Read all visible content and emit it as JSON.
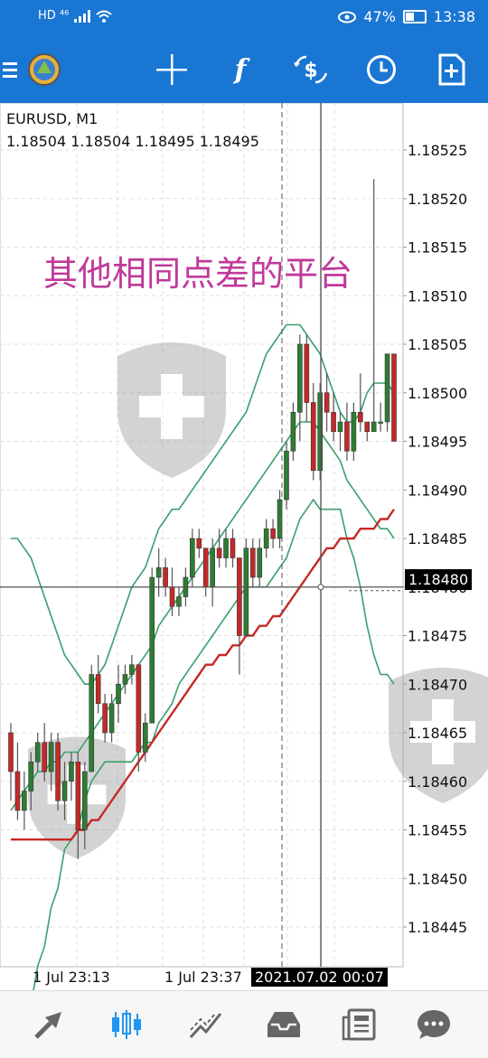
{
  "status_bar": {
    "left_badges": "HD ⁴⁶",
    "battery": "47%",
    "time": "13:38"
  },
  "toolbar": {
    "items": [
      {
        "name": "menu-icon"
      },
      {
        "name": "app-logo-icon"
      },
      {
        "name": "crosshair-icon"
      },
      {
        "name": "indicators-icon",
        "label": "f"
      },
      {
        "name": "trade-icon"
      },
      {
        "name": "timeframe-clock-icon"
      },
      {
        "name": "add-object-icon"
      }
    ]
  },
  "chart": {
    "symbol": "EURUSD, M1",
    "ohlc": "1.18504 1.18504 1.18495 1.18495",
    "watermark_text": "其他相同点差的平台",
    "current_price": "1.18480",
    "crosshair_time": "2021.07.02 00:07",
    "time_labels": [
      "1 Jul 23:13",
      "1 Jul 23:37"
    ],
    "colors": {
      "bull": "#2e7d32",
      "bear": "#c62828",
      "bands": "#3aa06a",
      "ma": "#c62828",
      "watermark": "#c0399a"
    }
  },
  "chart_data": {
    "type": "candlestick",
    "title": "EURUSD, M1",
    "y_ticks": [
      1.18525,
      1.1852,
      1.18515,
      1.1851,
      1.18505,
      1.185,
      1.18495,
      1.1849,
      1.18485,
      1.1848,
      1.18475,
      1.1847,
      1.18465,
      1.1846,
      1.18455,
      1.1845,
      1.18445
    ],
    "ylim": [
      1.18442,
      1.18528
    ],
    "grid": true,
    "candles": [
      [
        1.18465,
        1.18466,
        1.18458,
        1.18461
      ],
      [
        1.18461,
        1.18464,
        1.18456,
        1.18457
      ],
      [
        1.18457,
        1.18461,
        1.18455,
        1.18459
      ],
      [
        1.18459,
        1.18463,
        1.18457,
        1.18462
      ],
      [
        1.18462,
        1.18465,
        1.18461,
        1.18464
      ],
      [
        1.18464,
        1.18466,
        1.1846,
        1.18461
      ],
      [
        1.18461,
        1.18465,
        1.18459,
        1.18464
      ],
      [
        1.18464,
        1.18465,
        1.18457,
        1.18458
      ],
      [
        1.18458,
        1.18462,
        1.18456,
        1.1846
      ],
      [
        1.1846,
        1.18463,
        1.18458,
        1.18462
      ],
      [
        1.18462,
        1.18463,
        1.18452,
        1.18455
      ],
      [
        1.18455,
        1.18462,
        1.18453,
        1.18461
      ],
      [
        1.18461,
        1.18472,
        1.18461,
        1.18471
      ],
      [
        1.18471,
        1.18473,
        1.18467,
        1.18468
      ],
      [
        1.18468,
        1.18469,
        1.18464,
        1.18465
      ],
      [
        1.18465,
        1.18469,
        1.18464,
        1.18468
      ],
      [
        1.18468,
        1.18472,
        1.18466,
        1.1847
      ],
      [
        1.1847,
        1.18472,
        1.18469,
        1.18471
      ],
      [
        1.18471,
        1.18473,
        1.1847,
        1.18472
      ],
      [
        1.18472,
        1.18472,
        1.18461,
        1.18463
      ],
      [
        1.18463,
        1.18467,
        1.18462,
        1.18466
      ],
      [
        1.18466,
        1.18482,
        1.18466,
        1.18481
      ],
      [
        1.18481,
        1.18484,
        1.18479,
        1.18482
      ],
      [
        1.18482,
        1.18483,
        1.18479,
        1.1848
      ],
      [
        1.1848,
        1.18482,
        1.18477,
        1.18478
      ],
      [
        1.18478,
        1.1848,
        1.18477,
        1.18479
      ],
      [
        1.18479,
        1.18482,
        1.18478,
        1.18481
      ],
      [
        1.18481,
        1.18486,
        1.1848,
        1.18485
      ],
      [
        1.18485,
        1.18486,
        1.18483,
        1.18484
      ],
      [
        1.18484,
        1.18484,
        1.18479,
        1.1848
      ],
      [
        1.1848,
        1.18485,
        1.18478,
        1.18484
      ],
      [
        1.18484,
        1.18486,
        1.18482,
        1.18483
      ],
      [
        1.18483,
        1.18486,
        1.18482,
        1.18485
      ],
      [
        1.18485,
        1.18486,
        1.18482,
        1.18483
      ],
      [
        1.18483,
        1.18483,
        1.18471,
        1.18475
      ],
      [
        1.18475,
        1.18485,
        1.18475,
        1.18484
      ],
      [
        1.18484,
        1.18485,
        1.1848,
        1.18481
      ],
      [
        1.18481,
        1.18485,
        1.1848,
        1.18484
      ],
      [
        1.18484,
        1.18487,
        1.18483,
        1.18486
      ],
      [
        1.18486,
        1.18487,
        1.18484,
        1.18485
      ],
      [
        1.18485,
        1.1849,
        1.18484,
        1.18489
      ],
      [
        1.18489,
        1.18495,
        1.18488,
        1.18494
      ],
      [
        1.18494,
        1.18499,
        1.18493,
        1.18498
      ],
      [
        1.18498,
        1.18506,
        1.18495,
        1.18505
      ],
      [
        1.18505,
        1.18506,
        1.18497,
        1.18499
      ],
      [
        1.18499,
        1.18501,
        1.18491,
        1.18492
      ],
      [
        1.18492,
        1.18501,
        1.18491,
        1.185
      ],
      [
        1.185,
        1.18502,
        1.18496,
        1.18498
      ],
      [
        1.18498,
        1.185,
        1.18495,
        1.18496
      ],
      [
        1.18496,
        1.18498,
        1.18494,
        1.18497
      ],
      [
        1.18497,
        1.18499,
        1.18493,
        1.18494
      ],
      [
        1.18494,
        1.18499,
        1.18493,
        1.18498
      ],
      [
        1.18498,
        1.18502,
        1.18496,
        1.18497
      ],
      [
        1.18497,
        1.18497,
        1.18495,
        1.18496
      ],
      [
        1.18496,
        1.18522,
        1.18496,
        1.18497
      ],
      [
        1.18497,
        1.18499,
        1.18496,
        1.18497
      ],
      [
        1.18497,
        1.18504,
        1.18496,
        1.18504
      ],
      [
        1.18504,
        1.18504,
        1.18495,
        1.18495
      ]
    ],
    "bands_upper": [
      1.18485,
      1.18485,
      1.18484,
      1.18483,
      1.18481,
      1.18479,
      1.18477,
      1.18475,
      1.18473,
      1.18472,
      1.18471,
      1.1847,
      1.1847,
      1.18471,
      1.18472,
      1.18474,
      1.18476,
      1.18478,
      1.1848,
      1.18481,
      1.18482,
      1.18484,
      1.18486,
      1.18487,
      1.18488,
      1.18488,
      1.18489,
      1.1849,
      1.18491,
      1.18492,
      1.18493,
      1.18494,
      1.18495,
      1.18496,
      1.18497,
      1.18498,
      1.185,
      1.18502,
      1.18504,
      1.18505,
      1.18506,
      1.18507,
      1.18507,
      1.18507,
      1.18506,
      1.18505,
      1.18504,
      1.18502,
      1.185,
      1.18498,
      1.18497,
      1.18497,
      1.18498,
      1.185,
      1.18501,
      1.18501,
      1.18501,
      1.185
    ],
    "bands_middle": [
      1.18457,
      1.18458,
      1.18459,
      1.1846,
      1.18461,
      1.18461,
      1.18462,
      1.18462,
      1.18463,
      1.18463,
      1.18463,
      1.18464,
      1.18465,
      1.18466,
      1.18467,
      1.18468,
      1.18469,
      1.1847,
      1.18471,
      1.18472,
      1.18473,
      1.18474,
      1.18476,
      1.18477,
      1.18478,
      1.18479,
      1.1848,
      1.18481,
      1.18482,
      1.18483,
      1.18484,
      1.18485,
      1.18486,
      1.18487,
      1.18488,
      1.18489,
      1.1849,
      1.18491,
      1.18492,
      1.18493,
      1.18494,
      1.18495,
      1.18496,
      1.18497,
      1.18497,
      1.18497,
      1.18496,
      1.18495,
      1.18494,
      1.18493,
      1.18491,
      1.1849,
      1.18489,
      1.18488,
      1.18487,
      1.18486,
      1.18486,
      1.18485
    ],
    "bands_lower": [
      1.18429,
      1.18431,
      1.18434,
      1.18437,
      1.18441,
      1.18443,
      1.18447,
      1.18449,
      1.18453,
      1.18454,
      1.18455,
      1.18458,
      1.1846,
      1.18461,
      1.18462,
      1.18462,
      1.18462,
      1.18462,
      1.18462,
      1.18463,
      1.18464,
      1.18464,
      1.18466,
      1.18467,
      1.18468,
      1.1847,
      1.18471,
      1.18472,
      1.18473,
      1.18474,
      1.18475,
      1.18476,
      1.18477,
      1.18478,
      1.18479,
      1.1848,
      1.1848,
      1.1848,
      1.1848,
      1.18481,
      1.18482,
      1.18483,
      1.18485,
      1.18487,
      1.18488,
      1.18489,
      1.18488,
      1.18488,
      1.18488,
      1.18488,
      1.18485,
      1.18483,
      1.1848,
      1.18476,
      1.18473,
      1.18471,
      1.18471,
      1.1847
    ],
    "ma": [
      1.18454,
      1.18454,
      1.18454,
      1.18454,
      1.18454,
      1.18454,
      1.18454,
      1.18454,
      1.18454,
      1.18454,
      1.18455,
      1.18455,
      1.18456,
      1.18456,
      1.18457,
      1.18458,
      1.18459,
      1.1846,
      1.18461,
      1.18462,
      1.18463,
      1.18464,
      1.18465,
      1.18466,
      1.18467,
      1.18468,
      1.18469,
      1.1847,
      1.18471,
      1.18472,
      1.18472,
      1.18473,
      1.18473,
      1.18474,
      1.18474,
      1.18475,
      1.18475,
      1.18476,
      1.18476,
      1.18477,
      1.18477,
      1.18478,
      1.18479,
      1.1848,
      1.18481,
      1.18482,
      1.18483,
      1.18484,
      1.18484,
      1.18485,
      1.18485,
      1.18485,
      1.18486,
      1.18486,
      1.18486,
      1.18487,
      1.18487,
      1.18488
    ]
  },
  "bottom_nav": [
    {
      "name": "nav-quotes-icon"
    },
    {
      "name": "nav-chart-icon"
    },
    {
      "name": "nav-trade-icon"
    },
    {
      "name": "nav-history-icon"
    },
    {
      "name": "nav-news-icon"
    },
    {
      "name": "nav-chat-icon"
    }
  ]
}
